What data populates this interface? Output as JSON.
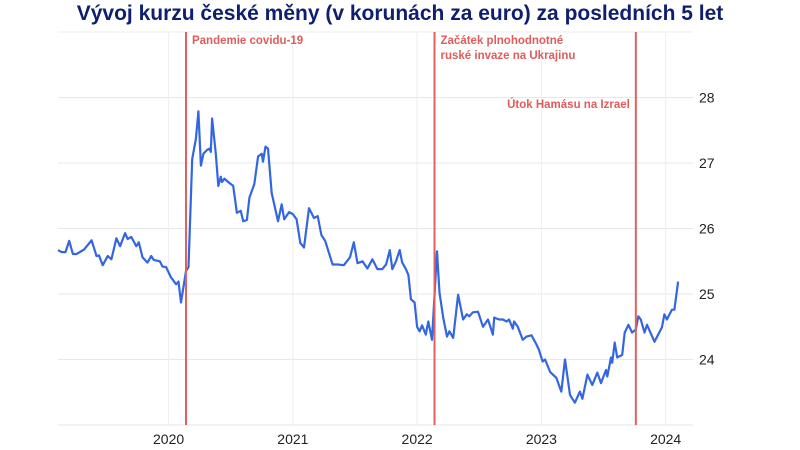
{
  "chart_data": {
    "type": "line",
    "title": "Vývoj kurzu české měny (v korunách za euro) za posledních 5 let",
    "xlabel": "",
    "ylabel": "",
    "xlim": [
      2019.11,
      2024.22
    ],
    "ylim": [
      23.0,
      29.0
    ],
    "x_ticks": [
      2020,
      2021,
      2022,
      2023,
      2024
    ],
    "x_tick_labels": [
      "2020",
      "2021",
      "2022",
      "2023",
      "2024"
    ],
    "y_ticks": [
      24,
      25,
      26,
      27,
      28
    ],
    "y_tick_labels": [
      "24",
      "25",
      "26",
      "27",
      "28"
    ],
    "y_axis_side": "right",
    "grid": true,
    "line_color": "#3366e0",
    "event_color": "#e06060",
    "events": [
      {
        "x": 2020.14,
        "label_lines": [
          "Pandemie covidu-19"
        ],
        "label_side": "right"
      },
      {
        "x": 2022.14,
        "label_lines": [
          "Začátek plnohodnotné",
          "ruské invaze na Ukrajinu"
        ],
        "label_side": "right"
      },
      {
        "x": 2023.76,
        "label_lines": [
          "Útok Hamásu na Izrael"
        ],
        "label_side": "left"
      }
    ],
    "x": [
      2019.11,
      2019.14,
      2019.17,
      2019.2,
      2019.23,
      2019.26,
      2019.32,
      2019.38,
      2019.42,
      2019.44,
      2019.47,
      2019.51,
      2019.54,
      2019.58,
      2019.61,
      2019.65,
      2019.67,
      2019.7,
      2019.74,
      2019.76,
      2019.79,
      2019.83,
      2019.86,
      2019.88,
      2019.93,
      2019.95,
      2019.98,
      2020.02,
      2020.06,
      2020.08,
      2020.1,
      2020.14,
      2020.16,
      2020.19,
      2020.22,
      2020.24,
      2020.26,
      2020.28,
      2020.31,
      2020.33,
      2020.34,
      2020.35,
      2020.38,
      2020.4,
      2020.42,
      2020.43,
      2020.45,
      2020.48,
      2020.52,
      2020.55,
      2020.58,
      2020.6,
      2020.63,
      2020.65,
      2020.69,
      2020.72,
      2020.75,
      2020.76,
      2020.78,
      2020.8,
      2020.83,
      2020.85,
      2020.88,
      2020.91,
      2020.93,
      2020.97,
      2021.0,
      2021.03,
      2021.06,
      2021.09,
      2021.13,
      2021.17,
      2021.2,
      2021.23,
      2021.26,
      2021.32,
      2021.36,
      2021.41,
      2021.46,
      2021.49,
      2021.52,
      2021.56,
      2021.6,
      2021.64,
      2021.68,
      2021.72,
      2021.75,
      2021.78,
      2021.8,
      2021.83,
      2021.86,
      2021.88,
      2021.91,
      2021.93,
      2021.95,
      2021.98,
      2022.0,
      2022.02,
      2022.04,
      2022.07,
      2022.09,
      2022.12,
      2022.16,
      2022.18,
      2022.21,
      2022.24,
      2022.26,
      2022.29,
      2022.33,
      2022.37,
      2022.4,
      2022.42,
      2022.45,
      2022.49,
      2022.53,
      2022.57,
      2022.61,
      2022.62,
      2022.66,
      2022.69,
      2022.72,
      2022.74,
      2022.77,
      2022.78,
      2022.81,
      2022.85,
      2022.88,
      2022.92,
      2022.96,
      2022.98,
      2023.01,
      2023.03,
      2023.07,
      2023.12,
      2023.16,
      2023.19,
      2023.23,
      2023.27,
      2023.31,
      2023.33,
      2023.37,
      2023.41,
      2023.45,
      2023.48,
      2023.52,
      2023.53,
      2023.56,
      2023.57,
      2023.59,
      2023.61,
      2023.65,
      2023.67,
      2023.7,
      2023.73,
      2023.76,
      2023.78,
      2023.8,
      2023.83,
      2023.85,
      2023.91,
      2023.97,
      2023.99,
      2024.01,
      2024.05,
      2024.07,
      2024.1
    ],
    "values": [
      25.67,
      25.64,
      25.64,
      25.81,
      25.61,
      25.61,
      25.68,
      25.82,
      25.58,
      25.59,
      25.44,
      25.58,
      25.53,
      25.85,
      25.73,
      25.93,
      25.84,
      25.87,
      25.73,
      25.79,
      25.56,
      25.48,
      25.58,
      25.52,
      25.5,
      25.42,
      25.41,
      25.25,
      25.15,
      25.19,
      24.87,
      25.35,
      25.41,
      27.06,
      27.37,
      27.79,
      26.96,
      27.14,
      27.2,
      27.22,
      27.17,
      27.68,
      27.14,
      26.65,
      26.79,
      26.71,
      26.76,
      26.71,
      26.65,
      26.24,
      26.27,
      26.11,
      26.13,
      26.47,
      26.68,
      27.1,
      27.14,
      27.02,
      27.25,
      27.22,
      26.54,
      26.37,
      26.11,
      26.37,
      26.14,
      26.25,
      26.22,
      26.14,
      25.78,
      25.71,
      26.31,
      26.16,
      26.19,
      25.9,
      25.81,
      25.45,
      25.45,
      25.44,
      25.56,
      25.79,
      25.47,
      25.5,
      25.39,
      25.53,
      25.38,
      25.38,
      25.45,
      25.67,
      25.38,
      25.5,
      25.67,
      25.48,
      25.38,
      25.29,
      24.92,
      24.87,
      24.5,
      24.43,
      24.52,
      24.38,
      24.58,
      24.3,
      25.65,
      25.02,
      24.64,
      24.35,
      24.43,
      24.33,
      24.99,
      24.61,
      24.69,
      24.66,
      24.72,
      24.73,
      24.5,
      24.61,
      24.38,
      24.64,
      24.61,
      24.61,
      24.58,
      24.61,
      24.47,
      24.58,
      24.5,
      24.3,
      24.35,
      24.37,
      24.23,
      24.15,
      23.97,
      24.0,
      23.81,
      23.72,
      23.51,
      24.0,
      23.46,
      23.34,
      23.51,
      23.4,
      23.77,
      23.61,
      23.8,
      23.64,
      23.84,
      23.74,
      24.03,
      23.95,
      24.26,
      24.03,
      24.07,
      24.41,
      24.53,
      24.41,
      24.46,
      24.66,
      24.61,
      24.41,
      24.53,
      24.27,
      24.49,
      24.69,
      24.61,
      24.76,
      24.76,
      25.19
    ]
  }
}
